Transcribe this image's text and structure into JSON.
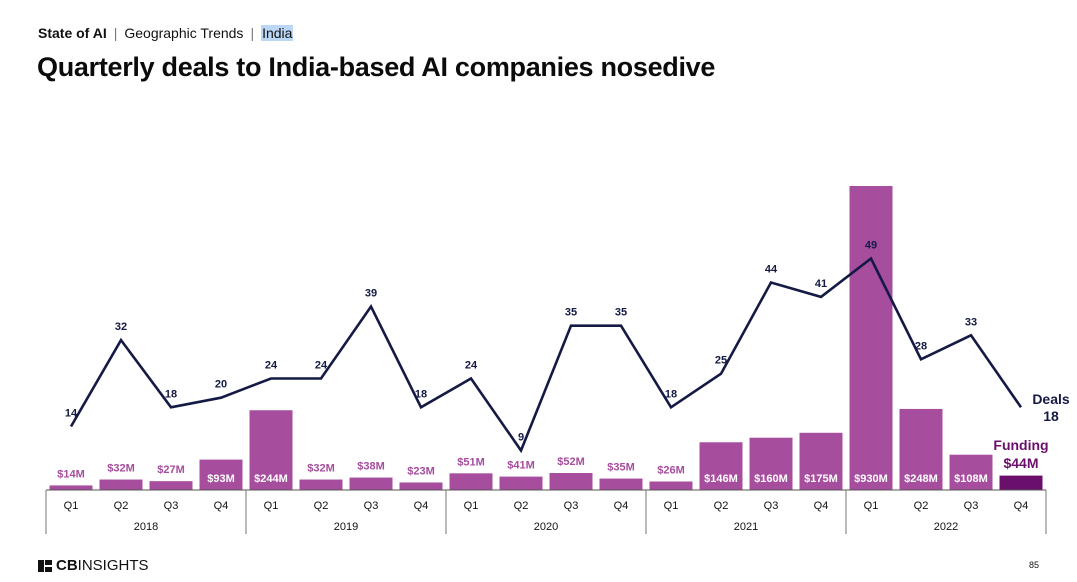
{
  "header": {
    "section": "State of AI",
    "topic": "Geographic Trends",
    "region": "India"
  },
  "title": "Quarterly deals to India-based AI companies nosedive",
  "colors": {
    "funding_bar": "#a64d9e",
    "funding_bar_latest": "#6b0f6d",
    "deals_line": "#141a44",
    "funding_label_outside": "#a64d9e",
    "funding_label_inside": "#ffffff"
  },
  "chart_data": {
    "type": "bar",
    "categories": [
      "Q1",
      "Q2",
      "Q3",
      "Q4",
      "Q1",
      "Q2",
      "Q3",
      "Q4",
      "Q1",
      "Q2",
      "Q3",
      "Q4",
      "Q1",
      "Q2",
      "Q3",
      "Q4",
      "Q1",
      "Q2",
      "Q3",
      "Q4"
    ],
    "years": [
      "2018",
      "2019",
      "2020",
      "2021",
      "2022"
    ],
    "series": [
      {
        "name": "Funding",
        "unit": "$M",
        "values": [
          14,
          32,
          27,
          93,
          244,
          32,
          38,
          23,
          51,
          41,
          52,
          35,
          26,
          146,
          160,
          175,
          930,
          248,
          108,
          44
        ],
        "labels": [
          "$14M",
          "$32M",
          "$27M",
          "$93M",
          "$244M",
          "$32M",
          "$38M",
          "$23M",
          "$51M",
          "$41M",
          "$52M",
          "$35M",
          "$26M",
          "$146M",
          "$160M",
          "$175M",
          "$930M",
          "$248M",
          "$108M",
          "$44M"
        ]
      },
      {
        "name": "Deals",
        "values": [
          14,
          32,
          18,
          20,
          24,
          24,
          39,
          18,
          24,
          9,
          35,
          35,
          18,
          25,
          44,
          41,
          49,
          28,
          33,
          18
        ]
      }
    ],
    "end_labels": {
      "deals_name": "Deals",
      "deals_value": "18",
      "funding_name": "Funding",
      "funding_value": "$44M"
    }
  },
  "footer": {
    "logo_bold": "CB",
    "logo_rest": "INSIGHTS",
    "page_number": "85"
  }
}
